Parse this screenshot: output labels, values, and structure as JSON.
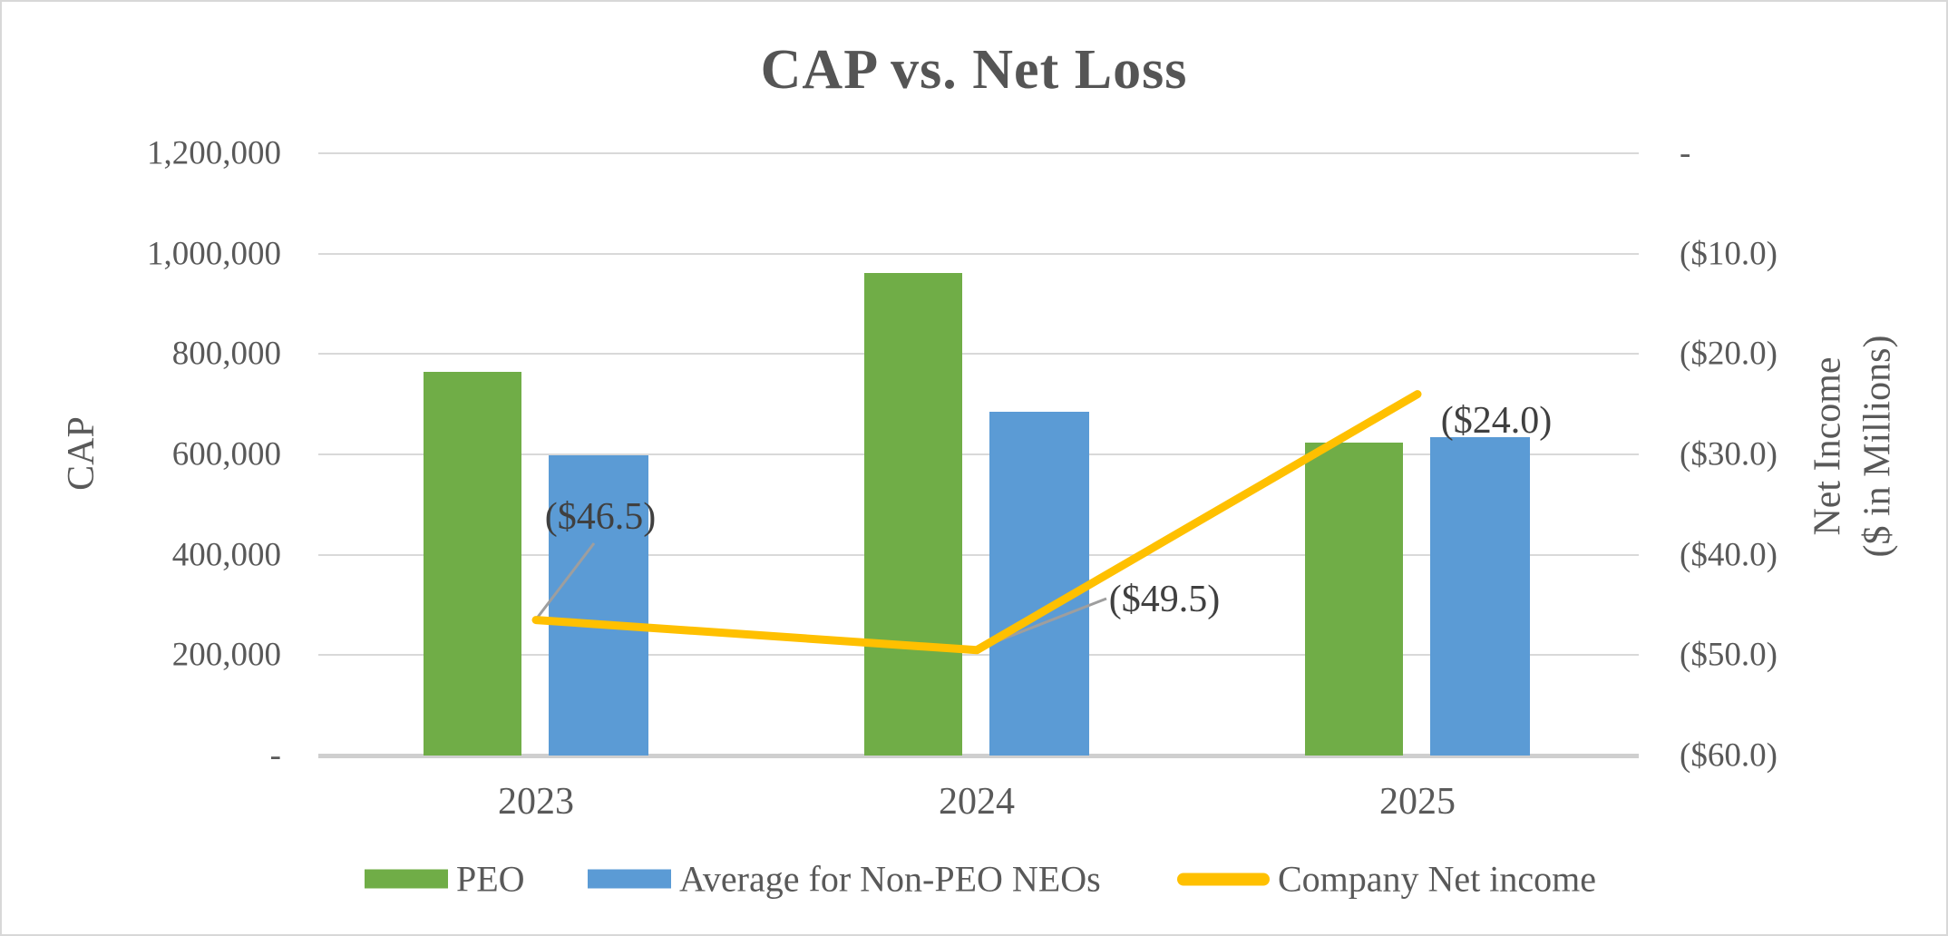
{
  "chart_data": {
    "type": "combo",
    "title": "CAP vs. Net Loss",
    "categories": [
      "2023",
      "2024",
      "2025"
    ],
    "series": [
      {
        "name": "PEO",
        "kind": "bar",
        "axis": "left",
        "color": "#70AD47",
        "values": [
          764000,
          962000,
          623000
        ]
      },
      {
        "name": "Average for Non-PEO NEOs",
        "kind": "bar",
        "axis": "left",
        "color": "#5B9BD5",
        "values": [
          598000,
          685000,
          634000
        ]
      },
      {
        "name": "Company Net income",
        "kind": "line",
        "axis": "right",
        "color": "#FFC000",
        "values": [
          -46.5,
          -49.5,
          -24.0
        ]
      }
    ],
    "data_labels": [
      "($46.5)",
      "($49.5)",
      "($24.0)"
    ],
    "left_axis": {
      "title": "CAP",
      "min": 0,
      "max": 1200000,
      "ticks": [
        "1,200,000",
        "1,000,000",
        "800,000",
        "600,000",
        "400,000",
        "200,000",
        "-"
      ]
    },
    "right_axis": {
      "title_lines": [
        "Net Income",
        "($ in Millions)"
      ],
      "min": -60,
      "max": 0,
      "ticks": [
        "-",
        "($10.0)",
        "($20.0)",
        "($30.0)",
        "($40.0)",
        "($50.0)",
        "($60.0)"
      ]
    },
    "legend": {
      "position": "bottom",
      "entries": [
        "PEO",
        "Average for Non-PEO NEOs",
        "Company Net income"
      ]
    },
    "grid": true,
    "colors": {
      "text": "#595959",
      "data_label_text": "#404040",
      "gridline": "#D9D9D9",
      "axis_line": "#CFCFCF",
      "leader_line": "#9E9E9E"
    }
  }
}
